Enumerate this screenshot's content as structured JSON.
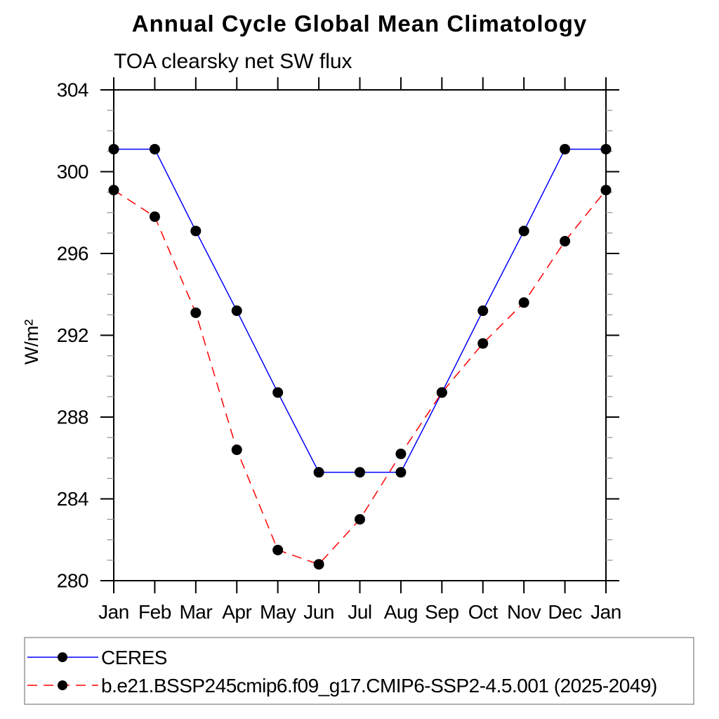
{
  "chart_data": {
    "type": "line",
    "title": "Annual Cycle Global Mean Climatology",
    "subtitle": "TOA clearsky net SW flux",
    "ylabel": "W/m²",
    "categories": [
      "Jan",
      "Feb",
      "Mar",
      "Apr",
      "May",
      "Jun",
      "Jul",
      "Aug",
      "Sep",
      "Oct",
      "Nov",
      "Dec",
      "Jan"
    ],
    "series": [
      {
        "name": "CERES",
        "color": "#0000ff",
        "line_style": "solid",
        "marker": "filled-circle",
        "marker_color": "#000000",
        "values": [
          301.1,
          301.1,
          297.1,
          293.2,
          289.2,
          285.3,
          285.3,
          285.3,
          289.2,
          293.2,
          297.1,
          301.1,
          301.1
        ]
      },
      {
        "name": "b.e21.BSSP245cmip6.f09_g17.CMIP6-SSP2-4.5.001 (2025-2049)",
        "color": "#ff0000",
        "line_style": "dashed",
        "marker": "filled-circle",
        "marker_color": "#000000",
        "values": [
          299.1,
          297.8,
          293.1,
          286.4,
          281.5,
          280.8,
          283.0,
          286.2,
          289.2,
          291.6,
          293.6,
          296.6,
          299.1
        ]
      }
    ],
    "ylim": [
      280,
      304
    ],
    "ytick_major_step": 4,
    "ytick_minor_step": 1,
    "grid": false,
    "legend_position": "bottom-left-box",
    "axis_color": "#000000",
    "minor_tick_color": "#999999"
  }
}
